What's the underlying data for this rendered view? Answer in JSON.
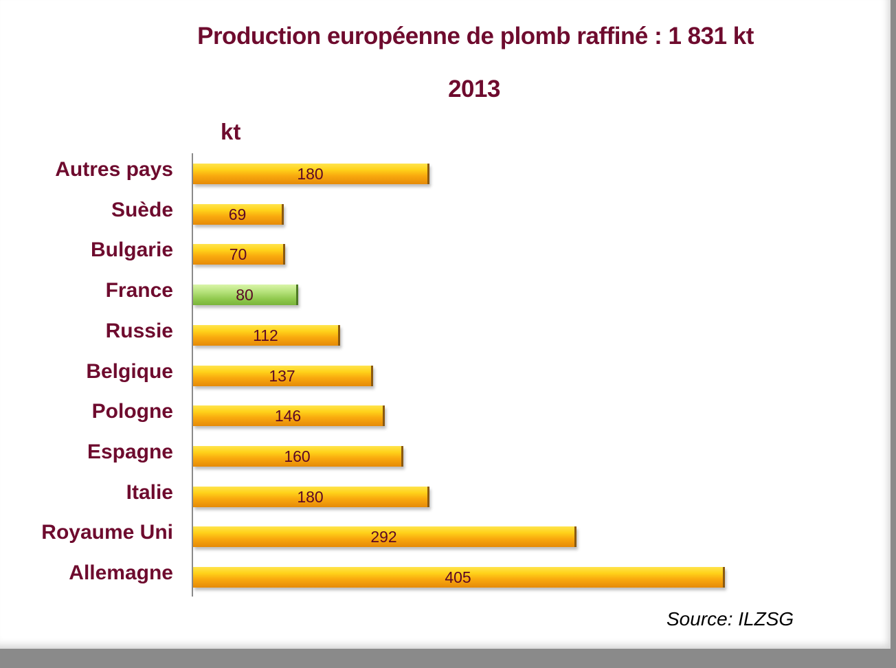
{
  "header": {
    "title": "Production européenne de plomb raffiné :  1 831 kt",
    "subtitle": "2013",
    "unit": "kt"
  },
  "source": "Source: ILZSG",
  "colors": {
    "default_bar": "#f9a90e",
    "highlight_bar": "#90c94e",
    "text": "#6e0b2e"
  },
  "chart_data": {
    "type": "bar",
    "orientation": "horizontal",
    "title": "Production européenne de plomb raffiné :  1 831 kt",
    "subtitle": "2013",
    "xlabel": "",
    "ylabel": "kt",
    "categories": [
      "Autres pays",
      "Suède",
      "Bulgarie",
      "France",
      "Russie",
      "Belgique",
      "Pologne",
      "Espagne",
      "Italie",
      "Royaume Uni",
      "Allemagne"
    ],
    "values": [
      180,
      69,
      70,
      80,
      112,
      137,
      146,
      160,
      180,
      292,
      405
    ],
    "highlight": "France",
    "grid": false,
    "legend": null,
    "source": "Source: ILZSG"
  }
}
